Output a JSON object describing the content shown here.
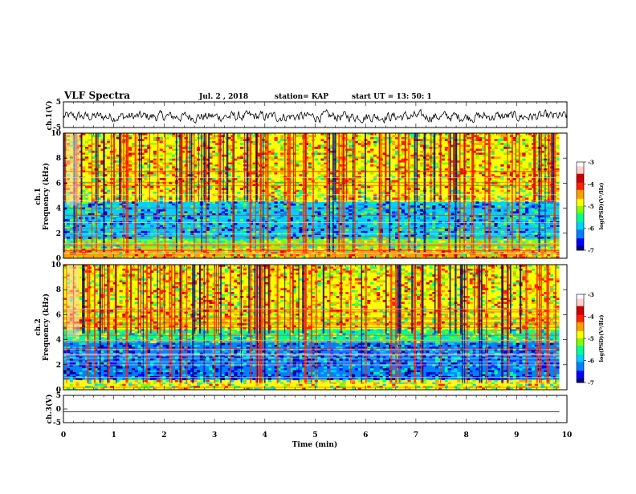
{
  "header": {
    "title": "VLF Spectra",
    "date": "Jul. 2 , 2018",
    "station": "station= KAP",
    "start": "start UT = 13: 50: 1"
  },
  "colors": {
    "colormap": [
      "#00008b",
      "#0000ff",
      "#0080ff",
      "#00d0ff",
      "#00ff90",
      "#80ff00",
      "#ffff00",
      "#ffa000",
      "#ff2000",
      "#cc0000",
      "#ffd0d0",
      "#ffffff"
    ],
    "trace": "#000000"
  },
  "chart_data": [
    {
      "panel": "ch1-waveform",
      "type": "line",
      "ylabel": "ch.1(V)",
      "ylim": [
        -5,
        5
      ],
      "yticks": [
        "5",
        "-5"
      ],
      "xlim": [
        0,
        10
      ],
      "description_values": "noise-like waveform oscillating roughly between -3 and 2 V"
    },
    {
      "panel": "ch1-spectrogram",
      "type": "heatmap",
      "ylabel": "ch.1\nFrequency (kHz)",
      "ylim": [
        0,
        10
      ],
      "yticks": [
        "0",
        "2",
        "4",
        "6",
        "8",
        "10"
      ],
      "xlim": [
        0,
        10
      ],
      "colorbar": {
        "label": "log(PSD)(V²/Hz)",
        "range": [
          -7,
          -3
        ],
        "ticks": [
          "-3",
          "-4",
          "-5",
          "-6",
          "-7"
        ]
      },
      "bands": [
        {
          "from": 0.0,
          "to": 0.8,
          "level": -4.6
        },
        {
          "from": 0.8,
          "to": 1.5,
          "level": -5.2
        },
        {
          "from": 1.5,
          "to": 4.5,
          "level": -6.0
        },
        {
          "from": 4.5,
          "to": 5.5,
          "level": -4.9
        },
        {
          "from": 5.5,
          "to": 10.0,
          "level": -4.7
        }
      ]
    },
    {
      "panel": "ch2-spectrogram",
      "type": "heatmap",
      "ylabel": "ch.2\nFrequency (kHz)",
      "ylim": [
        0,
        10
      ],
      "yticks": [
        "0",
        "2",
        "4",
        "6",
        "8",
        "10"
      ],
      "xlim": [
        0,
        10
      ],
      "colorbar": {
        "label": "log(PSD)(V²/Hz)",
        "range": [
          -7,
          -3
        ],
        "ticks": [
          "-3",
          "-4",
          "-5",
          "-6",
          "-7"
        ]
      },
      "bands": [
        {
          "from": 0.0,
          "to": 0.8,
          "level": -5.0
        },
        {
          "from": 0.8,
          "to": 3.8,
          "level": -6.3
        },
        {
          "from": 3.8,
          "to": 4.8,
          "level": -5.4
        },
        {
          "from": 4.8,
          "to": 10.0,
          "level": -4.7
        }
      ]
    },
    {
      "panel": "ch3-waveform",
      "type": "line",
      "ylabel": "ch.3(V)",
      "ylim": [
        -5,
        5
      ],
      "yticks": [
        "5",
        "0",
        "-5"
      ],
      "xlim": [
        0,
        10
      ],
      "values_constant": -1
    }
  ],
  "xaxis": {
    "label": "Time (min)",
    "ticks": [
      "0",
      "1",
      "2",
      "3",
      "4",
      "5",
      "6",
      "7",
      "8",
      "9",
      "10"
    ]
  }
}
